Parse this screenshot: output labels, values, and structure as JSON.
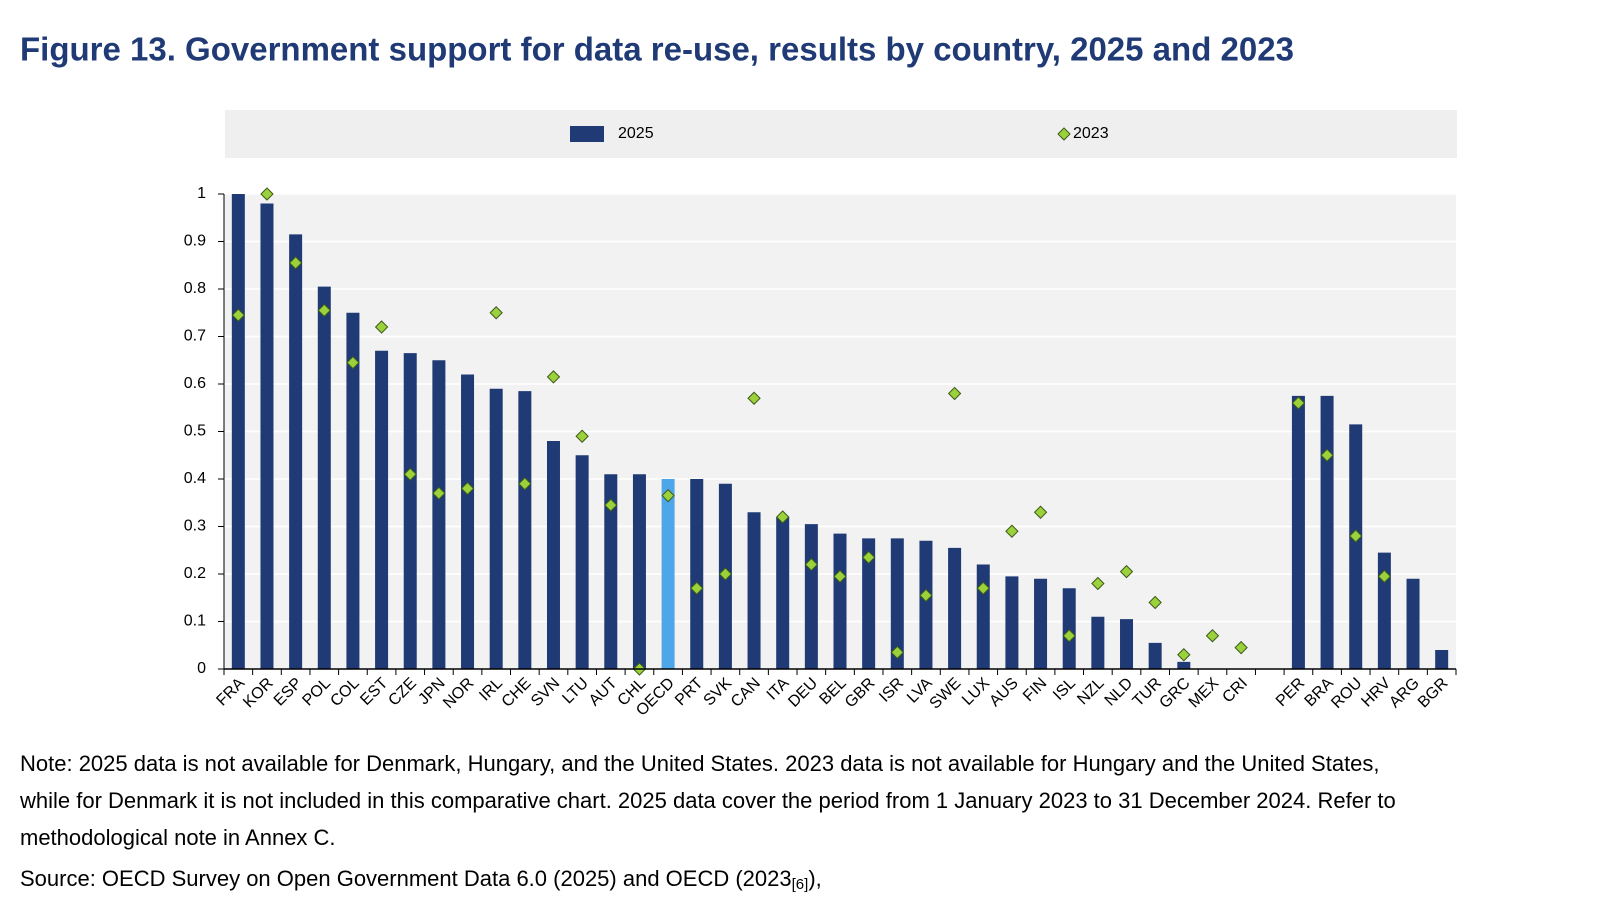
{
  "chart_data": {
    "type": "bar",
    "title": "Figure 13. Government support for data re-use, results by country, 2025 and 2023",
    "categories": [
      "FRA",
      "KOR",
      "ESP",
      "POL",
      "COL",
      "EST",
      "CZE",
      "JPN",
      "NOR",
      "IRL",
      "CHE",
      "SVN",
      "LTU",
      "AUT",
      "CHL",
      "OECD",
      "PRT",
      "SVK",
      "CAN",
      "ITA",
      "DEU",
      "BEL",
      "GBR",
      "ISR",
      "LVA",
      "SWE",
      "LUX",
      "AUS",
      "FIN",
      "ISL",
      "NZL",
      "NLD",
      "TUR",
      "GRC",
      "MEX",
      "CRI",
      null,
      "PER",
      "BRA",
      "ROU",
      "HRV",
      "ARG",
      "BGR"
    ],
    "series": [
      {
        "name": "2025",
        "mark": "bar",
        "color": "#1f3a75",
        "colors": [
          "#1f3a75",
          "#1f3a75",
          "#1f3a75",
          "#1f3a75",
          "#1f3a75",
          "#1f3a75",
          "#1f3a75",
          "#1f3a75",
          "#1f3a75",
          "#1f3a75",
          "#1f3a75",
          "#1f3a75",
          "#1f3a75",
          "#1f3a75",
          "#1f3a75",
          "#4ea6ea",
          "#1f3a75",
          "#1f3a75",
          "#1f3a75",
          "#1f3a75",
          "#1f3a75",
          "#1f3a75",
          "#1f3a75",
          "#1f3a75",
          "#1f3a75",
          "#1f3a75",
          "#1f3a75",
          "#1f3a75",
          "#1f3a75",
          "#1f3a75",
          "#1f3a75",
          "#1f3a75",
          "#1f3a75",
          "#1f3a75",
          "#1f3a75",
          "#1f3a75",
          "#1f3a75",
          "#1f3a75",
          "#1f3a75",
          "#1f3a75",
          "#1f3a75",
          "#1f3a75",
          "#1f3a75"
        ],
        "values": [
          1,
          0.98,
          0.915,
          0.805,
          0.75,
          0.67,
          0.665,
          0.65,
          0.62,
          0.59,
          0.585,
          0.48,
          0.45,
          0.41,
          0.41,
          0.4,
          0.4,
          0.39,
          0.33,
          0.32,
          0.305,
          0.285,
          0.275,
          0.275,
          0.27,
          0.255,
          0.22,
          0.195,
          0.19,
          0.17,
          0.11,
          0.105,
          0.055,
          0.015,
          null,
          null,
          null,
          0.575,
          0.575,
          0.515,
          0.245,
          0.19,
          0.04
        ]
      },
      {
        "name": "2023",
        "mark": "diamond",
        "color": "#9bd13b",
        "values": [
          0.745,
          1,
          0.855,
          0.755,
          0.645,
          0.72,
          0.41,
          0.37,
          0.38,
          0.75,
          0.39,
          0.615,
          0.49,
          0.345,
          0,
          0.365,
          0.17,
          0.2,
          0.57,
          0.32,
          0.22,
          0.195,
          0.235,
          0.035,
          0.155,
          0.58,
          0.17,
          0.29,
          0.33,
          0.07,
          0.18,
          0.205,
          0.14,
          0.03,
          0.07,
          0.045,
          null,
          0.56,
          0.45,
          0.28,
          0.195,
          null,
          null
        ]
      }
    ],
    "ylim": [
      0,
      1
    ],
    "yticks": [
      0,
      0.1,
      0.2,
      0.3,
      0.4,
      0.5,
      0.6,
      0.7,
      0.8,
      0.9,
      1
    ],
    "grid": true,
    "legend": "top",
    "notes": [
      "Note: 2025 data is not available for Denmark, Hungary, and the United States. 2023 data is not available for Hungary and the United States,",
      "while for Denmark it is not included in this comparative chart. 2025 data cover the period from 1 January 2023 to 31 December 2024. Refer to",
      "methodological note in Annex C."
    ],
    "source": {
      "text": "Source: OECD Survey on Open Government Data 6.0 (2025) and OECD (2023",
      "ref": "[6]",
      "end": "),"
    }
  }
}
